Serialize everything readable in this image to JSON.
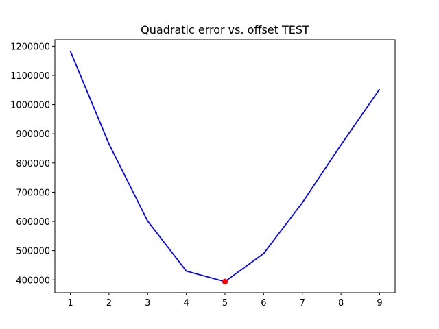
{
  "chart_data": {
    "type": "line",
    "title": "Quadratic error vs. offset TEST",
    "xlabel": "",
    "ylabel": "",
    "xlim": [
      0.6,
      9.4
    ],
    "ylim": [
      356000,
      1222000
    ],
    "x_ticks": [
      1,
      2,
      3,
      4,
      5,
      6,
      7,
      8,
      9
    ],
    "y_ticks": [
      400000,
      500000,
      600000,
      700000,
      800000,
      900000,
      1000000,
      1100000,
      1200000
    ],
    "grid": false,
    "series": [
      {
        "color": "#0000ff",
        "x": [
          1,
          2,
          3,
          4,
          5,
          6,
          7,
          8,
          9
        ],
        "y": [
          1183000,
          865000,
          601000,
          430000,
          394000,
          490000,
          664000,
          862000,
          1053000
        ]
      }
    ],
    "highlight_point": {
      "x": 5,
      "y": 394000,
      "color": "#ff0000"
    }
  }
}
